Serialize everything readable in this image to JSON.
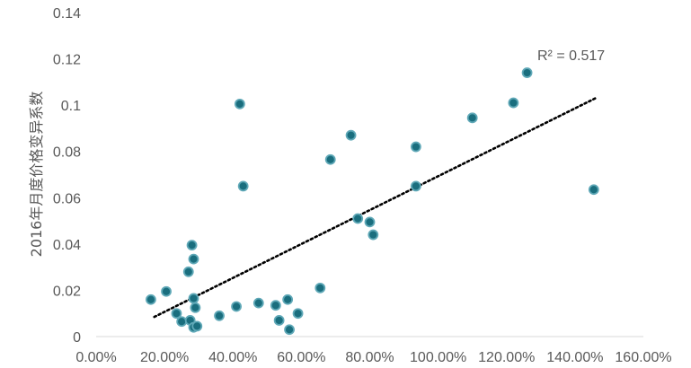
{
  "chart_data": {
    "type": "scatter",
    "title": "",
    "xlabel": "",
    "ylabel": "2016年月度价格变异系数",
    "xlim": [
      0,
      1.6
    ],
    "ylim": [
      0,
      0.14
    ],
    "x_ticks": [
      "0.00%",
      "20.00%",
      "40.00%",
      "60.00%",
      "80.00%",
      "100.00%",
      "120.00%",
      "140.00%",
      "160.00%"
    ],
    "y_ticks": [
      "0",
      "0.02",
      "0.04",
      "0.06",
      "0.08",
      "0.1",
      "0.12",
      "0.14"
    ],
    "grid": false,
    "legend": "none",
    "marker_color": "#1a6e7e",
    "marker_edge_color": "#5fa8b7",
    "trendline": {
      "type": "linear",
      "style": "dotted",
      "color": "#000000",
      "x_range": [
        0.17,
        1.46
      ],
      "y_at_start": 0.0085,
      "y_at_end": 0.103,
      "r2_label": "R² = 0.517"
    },
    "points": [
      {
        "x": 0.16,
        "y": 0.016
      },
      {
        "x": 0.205,
        "y": 0.0195
      },
      {
        "x": 0.235,
        "y": 0.01
      },
      {
        "x": 0.25,
        "y": 0.0065
      },
      {
        "x": 0.27,
        "y": 0.028
      },
      {
        "x": 0.275,
        "y": 0.007
      },
      {
        "x": 0.28,
        "y": 0.0395
      },
      {
        "x": 0.285,
        "y": 0.0335
      },
      {
        "x": 0.285,
        "y": 0.0165
      },
      {
        "x": 0.29,
        "y": 0.0125
      },
      {
        "x": 0.285,
        "y": 0.004
      },
      {
        "x": 0.295,
        "y": 0.0045
      },
      {
        "x": 0.36,
        "y": 0.009
      },
      {
        "x": 0.41,
        "y": 0.013
      },
      {
        "x": 0.42,
        "y": 0.1005
      },
      {
        "x": 0.43,
        "y": 0.065
      },
      {
        "x": 0.475,
        "y": 0.0145
      },
      {
        "x": 0.525,
        "y": 0.0135
      },
      {
        "x": 0.535,
        "y": 0.007
      },
      {
        "x": 0.56,
        "y": 0.016
      },
      {
        "x": 0.565,
        "y": 0.003
      },
      {
        "x": 0.59,
        "y": 0.01
      },
      {
        "x": 0.655,
        "y": 0.021
      },
      {
        "x": 0.685,
        "y": 0.0765
      },
      {
        "x": 0.745,
        "y": 0.087
      },
      {
        "x": 0.765,
        "y": 0.051
      },
      {
        "x": 0.8,
        "y": 0.0495
      },
      {
        "x": 0.81,
        "y": 0.044
      },
      {
        "x": 0.935,
        "y": 0.082
      },
      {
        "x": 0.935,
        "y": 0.065
      },
      {
        "x": 1.1,
        "y": 0.0945
      },
      {
        "x": 1.22,
        "y": 0.101
      },
      {
        "x": 1.26,
        "y": 0.114
      },
      {
        "x": 1.455,
        "y": 0.0635
      }
    ]
  }
}
